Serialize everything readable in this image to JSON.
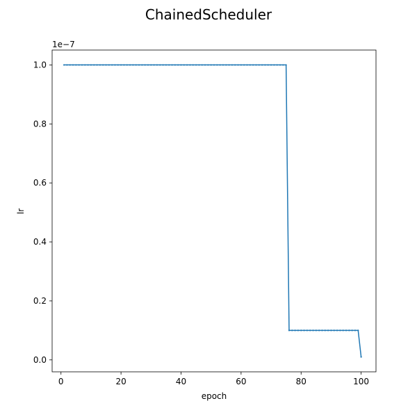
{
  "chart_data": {
    "type": "line",
    "title": "ChainedScheduler",
    "xlabel": "epoch",
    "ylabel": "lr",
    "y_offset_label": "1e−7",
    "xlim": [
      -2.95,
      104.95
    ],
    "ylim": [
      -0.0405,
      1.0505
    ],
    "y_unit_scale": 1e-07,
    "xticks": [
      0,
      20,
      40,
      60,
      80,
      100
    ],
    "yticks": [
      0.0,
      0.2,
      0.4,
      0.6,
      0.8,
      1.0
    ],
    "ytick_labels": [
      "0.0",
      "0.2",
      "0.4",
      "0.6",
      "0.8",
      "1.0"
    ],
    "grid": false,
    "markers": true,
    "color": "#1f77b4",
    "segments": [
      {
        "x_start": 1,
        "x_end": 75,
        "y": 1.0
      },
      {
        "x_start": 76,
        "x_end": 99,
        "y": 0.1
      },
      {
        "x_start": 100,
        "x_end": 100,
        "y": 0.01
      }
    ]
  }
}
